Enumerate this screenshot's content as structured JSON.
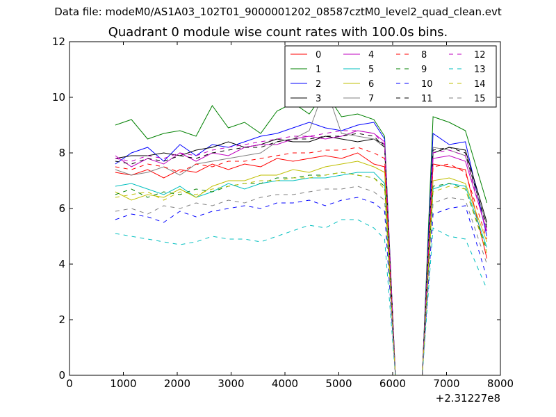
{
  "supertitle": "Data file: modeM0/AS1A03_102T01_9000001202_08587cztM0_level2_quad_clean.evt",
  "chart_data": {
    "type": "line",
    "title": "Quadrant 0 module wise count rates with 100.0s bins.",
    "xlabel": "",
    "ylabel": "",
    "x_offset_label": "+2.31227e8",
    "xlim": [
      0,
      8000
    ],
    "ylim": [
      0,
      12
    ],
    "xticks": [
      0,
      1000,
      2000,
      3000,
      4000,
      5000,
      6000,
      7000,
      8000
    ],
    "xtick_labels": [
      "0",
      "1000",
      "2000",
      "3000",
      "4000",
      "5000",
      "6000",
      "7000",
      "8000"
    ],
    "yticks": [
      0,
      2,
      4,
      6,
      8,
      10,
      12
    ],
    "ytick_labels": [
      "0",
      "2",
      "4",
      "6",
      "8",
      "10",
      "12"
    ],
    "grid": false,
    "legend_position": "top-right",
    "legend_columns": 4,
    "series": [
      {
        "name": "0",
        "color": "#ff0000",
        "style": "solid",
        "x": [
          850,
          1150,
          1450,
          1750,
          2050,
          2350,
          2650,
          2950,
          3250,
          3550,
          3850,
          4150,
          4450,
          4750,
          5050,
          5350,
          5650,
          5850,
          6050,
          6550,
          6750,
          7050,
          7350,
          7750
        ],
        "y": [
          7.3,
          7.2,
          7.4,
          7.1,
          7.4,
          7.3,
          7.6,
          7.4,
          7.6,
          7.5,
          7.8,
          7.7,
          7.8,
          7.9,
          7.8,
          8.0,
          7.6,
          7.5,
          0,
          0,
          7.6,
          7.5,
          7.4,
          4.2
        ]
      },
      {
        "name": "1",
        "color": "#008000",
        "style": "solid",
        "x": [
          850,
          1150,
          1450,
          1750,
          2050,
          2350,
          2650,
          2950,
          3250,
          3550,
          3850,
          4150,
          4450,
          4750,
          5050,
          5350,
          5650,
          5850,
          6050,
          6550,
          6750,
          7050,
          7350,
          7750
        ],
        "y": [
          9.0,
          9.2,
          8.5,
          8.7,
          8.8,
          8.6,
          9.7,
          8.9,
          9.1,
          8.7,
          9.5,
          9.8,
          9.4,
          10.2,
          9.3,
          9.4,
          9.2,
          8.6,
          0,
          0,
          9.3,
          9.1,
          8.8,
          6.2
        ]
      },
      {
        "name": "2",
        "color": "#0000ff",
        "style": "solid",
        "x": [
          850,
          1150,
          1450,
          1750,
          2050,
          2350,
          2650,
          2950,
          3250,
          3550,
          3850,
          4150,
          4450,
          4750,
          5050,
          5350,
          5650,
          5850,
          6050,
          6550,
          6750,
          7050,
          7350,
          7750
        ],
        "y": [
          7.6,
          8.0,
          8.2,
          7.7,
          8.3,
          7.9,
          8.3,
          8.2,
          8.4,
          8.6,
          8.7,
          8.9,
          9.1,
          8.9,
          8.8,
          9.0,
          9.1,
          8.5,
          0,
          0,
          8.7,
          8.3,
          8.4,
          5.0
        ]
      },
      {
        "name": "3",
        "color": "#000000",
        "style": "solid",
        "x": [
          850,
          1150,
          1450,
          1750,
          2050,
          2350,
          2650,
          2950,
          3250,
          3550,
          3850,
          4150,
          4450,
          4750,
          5050,
          5350,
          5650,
          5850,
          6050,
          6550,
          6750,
          7050,
          7350,
          7750
        ],
        "y": [
          7.8,
          7.9,
          7.9,
          8.0,
          7.9,
          8.1,
          8.2,
          8.4,
          8.2,
          8.3,
          8.5,
          8.4,
          8.4,
          8.6,
          8.5,
          8.4,
          8.5,
          8.3,
          0,
          0,
          8.0,
          8.2,
          8.1,
          5.5
        ]
      },
      {
        "name": "4",
        "color": "#bf00bf",
        "style": "solid",
        "x": [
          850,
          1150,
          1450,
          1750,
          2050,
          2350,
          2650,
          2950,
          3250,
          3550,
          3850,
          4150,
          4450,
          4750,
          5050,
          5350,
          5650,
          5850,
          6050,
          6550,
          6750,
          7050,
          7350,
          7750
        ],
        "y": [
          7.9,
          7.5,
          7.8,
          7.6,
          8.0,
          7.7,
          8.0,
          7.9,
          8.2,
          8.3,
          8.3,
          8.5,
          8.6,
          8.5,
          8.6,
          8.8,
          8.7,
          8.4,
          0,
          0,
          7.8,
          7.9,
          7.7,
          5.2
        ]
      },
      {
        "name": "5",
        "color": "#00bfbf",
        "style": "solid",
        "x": [
          850,
          1150,
          1450,
          1750,
          2050,
          2350,
          2650,
          2950,
          3250,
          3550,
          3850,
          4150,
          4450,
          4750,
          5050,
          5350,
          5650,
          5850,
          6050,
          6550,
          6750,
          7050,
          7350,
          7750
        ],
        "y": [
          6.8,
          6.9,
          6.7,
          6.5,
          6.8,
          6.4,
          6.6,
          6.9,
          6.7,
          6.9,
          7.0,
          7.0,
          7.1,
          7.1,
          7.2,
          7.3,
          7.3,
          6.9,
          0,
          0,
          6.7,
          6.9,
          6.8,
          4.6
        ]
      },
      {
        "name": "6",
        "color": "#bfbf00",
        "style": "solid",
        "x": [
          850,
          1150,
          1450,
          1750,
          2050,
          2350,
          2650,
          2950,
          3250,
          3550,
          3850,
          4150,
          4450,
          4750,
          5050,
          5350,
          5650,
          5850,
          6050,
          6550,
          6750,
          7050,
          7350,
          7750
        ],
        "y": [
          6.6,
          6.3,
          6.5,
          6.4,
          6.7,
          6.4,
          6.8,
          7.0,
          7.0,
          7.2,
          7.2,
          7.4,
          7.3,
          7.5,
          7.6,
          7.7,
          7.5,
          7.3,
          0,
          0,
          7.0,
          7.1,
          6.9,
          4.8
        ]
      },
      {
        "name": "7",
        "color": "#808080",
        "style": "solid",
        "x": [
          850,
          1150,
          1450,
          1750,
          2050,
          2350,
          2650,
          2950,
          3250,
          3550,
          3850,
          4150,
          4450,
          4750,
          5050,
          5350,
          5650,
          5850,
          6050,
          6550,
          6750,
          7050,
          7350,
          7750
        ],
        "y": [
          7.4,
          7.2,
          7.3,
          7.5,
          7.2,
          7.6,
          7.7,
          7.8,
          7.9,
          8.0,
          8.4,
          8.5,
          8.8,
          10.4,
          8.7,
          8.6,
          8.5,
          8.2,
          0,
          0,
          8.2,
          8.1,
          7.9,
          5.4
        ]
      },
      {
        "name": "8",
        "color": "#ff0000",
        "style": "dashed",
        "x": [
          850,
          1150,
          1450,
          1750,
          2050,
          2350,
          2650,
          2950,
          3250,
          3550,
          3850,
          4150,
          4450,
          4750,
          5050,
          5350,
          5650,
          5850,
          6050,
          6550,
          6750,
          7050,
          7350,
          7750
        ],
        "y": [
          7.5,
          7.4,
          7.6,
          7.5,
          7.3,
          7.6,
          7.5,
          7.7,
          7.7,
          7.8,
          7.9,
          8.0,
          8.0,
          8.1,
          8.1,
          8.2,
          8.0,
          7.8,
          0,
          0,
          7.5,
          7.6,
          7.3,
          4.9
        ]
      },
      {
        "name": "9",
        "color": "#008000",
        "style": "dashed",
        "x": [
          850,
          1150,
          1450,
          1750,
          2050,
          2350,
          2650,
          2950,
          3250,
          3550,
          3850,
          4150,
          4450,
          4750,
          5050,
          5350,
          5650,
          5850,
          6050,
          6550,
          6750,
          7050,
          7350,
          7750
        ],
        "y": [
          6.5,
          6.7,
          6.4,
          6.6,
          6.5,
          6.7,
          6.6,
          6.8,
          6.9,
          6.9,
          7.1,
          7.1,
          7.2,
          7.2,
          7.3,
          7.2,
          7.1,
          6.8,
          0,
          0,
          6.8,
          6.9,
          6.7,
          4.5
        ]
      },
      {
        "name": "10",
        "color": "#0000ff",
        "style": "dashed",
        "x": [
          850,
          1150,
          1450,
          1750,
          2050,
          2350,
          2650,
          2950,
          3250,
          3550,
          3850,
          4150,
          4450,
          4750,
          5050,
          5350,
          5650,
          5850,
          6050,
          6550,
          6750,
          7050,
          7350,
          7750
        ],
        "y": [
          5.6,
          5.8,
          5.7,
          5.5,
          5.9,
          5.7,
          5.9,
          6.0,
          6.1,
          6.0,
          6.2,
          6.2,
          6.3,
          6.1,
          6.3,
          6.4,
          6.2,
          5.9,
          0,
          0,
          5.8,
          6.0,
          6.1,
          3.5
        ]
      },
      {
        "name": "11",
        "color": "#000000",
        "style": "dashed",
        "x": [
          850,
          1150,
          1450,
          1750,
          2050,
          2350,
          2650,
          2950,
          3250,
          3550,
          3850,
          4150,
          4450,
          4750,
          5050,
          5350,
          5650,
          5850,
          6050,
          6550,
          6750,
          7050,
          7350,
          7750
        ],
        "y": [
          7.7,
          7.6,
          7.8,
          7.7,
          7.9,
          7.8,
          8.0,
          8.1,
          8.2,
          8.2,
          8.4,
          8.5,
          8.5,
          8.6,
          8.6,
          8.7,
          8.6,
          8.2,
          0,
          0,
          8.1,
          8.2,
          8.0,
          5.3
        ]
      },
      {
        "name": "12",
        "color": "#bf00bf",
        "style": "dashed",
        "x": [
          850,
          1150,
          1450,
          1750,
          2050,
          2350,
          2650,
          2950,
          3250,
          3550,
          3850,
          4150,
          4450,
          4750,
          5050,
          5350,
          5650,
          5850,
          6050,
          6550,
          6750,
          7050,
          7350,
          7750
        ],
        "y": [
          7.8,
          7.7,
          7.9,
          7.8,
          8.0,
          7.9,
          8.1,
          8.2,
          8.3,
          8.4,
          8.5,
          8.6,
          8.6,
          8.7,
          8.8,
          8.8,
          8.7,
          8.3,
          0,
          0,
          8.0,
          8.1,
          7.9,
          5.1
        ]
      },
      {
        "name": "13",
        "color": "#00bfbf",
        "style": "dashed",
        "x": [
          850,
          1150,
          1450,
          1750,
          2050,
          2350,
          2650,
          2950,
          3250,
          3550,
          3850,
          4150,
          4450,
          4750,
          5050,
          5350,
          5650,
          5850,
          6050,
          6550,
          6750,
          7050,
          7350,
          7750
        ],
        "y": [
          5.1,
          5.0,
          4.9,
          4.8,
          4.7,
          4.8,
          5.0,
          4.9,
          4.9,
          4.8,
          5.0,
          5.2,
          5.4,
          5.3,
          5.6,
          5.6,
          5.3,
          4.9,
          0,
          0,
          5.3,
          5.0,
          4.9,
          3.1
        ]
      },
      {
        "name": "14",
        "color": "#bfbf00",
        "style": "dashed",
        "x": [
          850,
          1150,
          1450,
          1750,
          2050,
          2350,
          2650,
          2950,
          3250,
          3550,
          3850,
          4150,
          4450,
          4750,
          5050,
          5350,
          5650,
          5850,
          6050,
          6550,
          6750,
          7050,
          7350,
          7750
        ],
        "y": [
          6.4,
          6.5,
          6.6,
          6.3,
          6.6,
          6.5,
          6.7,
          6.8,
          6.9,
          7.0,
          7.0,
          7.1,
          7.1,
          7.2,
          7.3,
          7.2,
          7.1,
          6.7,
          0,
          0,
          6.6,
          6.8,
          6.7,
          4.4
        ]
      },
      {
        "name": "15",
        "color": "#808080",
        "style": "dashed",
        "x": [
          850,
          1150,
          1450,
          1750,
          2050,
          2350,
          2650,
          2950,
          3250,
          3550,
          3850,
          4150,
          4450,
          4750,
          5050,
          5350,
          5650,
          5850,
          6050,
          6550,
          6750,
          7050,
          7350,
          7750
        ],
        "y": [
          5.9,
          6.0,
          5.8,
          6.1,
          6.0,
          6.2,
          6.1,
          6.3,
          6.2,
          6.4,
          6.5,
          6.5,
          6.6,
          6.7,
          6.7,
          6.8,
          6.6,
          6.3,
          0,
          0,
          6.2,
          6.4,
          6.3,
          4.0
        ]
      }
    ]
  }
}
